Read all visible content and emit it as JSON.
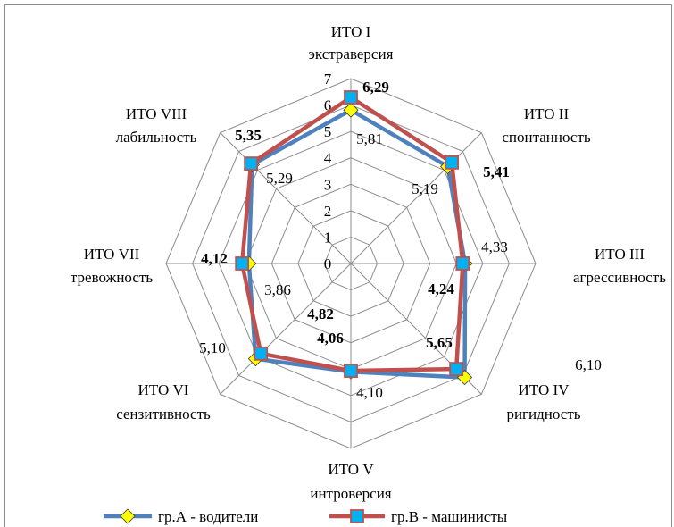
{
  "chart_data": {
    "type": "radar",
    "categories": [
      [
        "ИТО I",
        "экстраверсия"
      ],
      [
        "ИТО II",
        "спонтанность"
      ],
      [
        "ИТО III",
        "агрессивность"
      ],
      [
        "ИТО IV",
        "ригидность"
      ],
      [
        "ИТО V",
        "интроверсия"
      ],
      [
        "ИТО VI",
        "сензитивность"
      ],
      [
        "ИТО VII",
        "тревожность"
      ],
      [
        "ИТО VIII",
        "лабильность"
      ]
    ],
    "rlim": [
      0,
      7
    ],
    "ticks": [
      "0",
      "1",
      "2",
      "3",
      "4",
      "5",
      "6",
      "7"
    ],
    "grid": true,
    "legend_position": "bottom",
    "series": [
      {
        "name": "гр.А - водители",
        "values": [
          5.81,
          5.19,
          4.33,
          6.1,
          4.1,
          5.1,
          3.86,
          5.29
        ],
        "labels": [
          "5,81",
          "5,19",
          "4,33",
          "6,10",
          "4,10",
          "5,10",
          "3,86",
          "5,29"
        ],
        "line_color": "#4F81BD",
        "marker": "diamond",
        "marker_color": "#FFFF00"
      },
      {
        "name": "гр.В - машинисты",
        "values": [
          6.29,
          5.41,
          4.24,
          5.65,
          4.06,
          4.82,
          4.12,
          5.35
        ],
        "labels": [
          "6,29",
          "5,41",
          "4,24",
          "5,65",
          "4,06",
          "4,82",
          "4,12",
          "5,35"
        ],
        "line_color": "#C0504D",
        "marker": "square",
        "marker_color": "#00B0F0"
      }
    ]
  }
}
